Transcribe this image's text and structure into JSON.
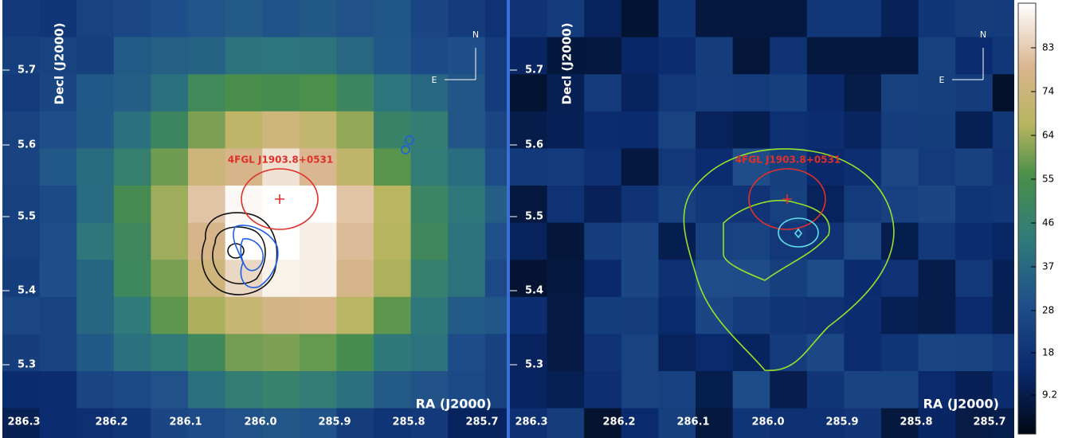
{
  "panels": [
    {
      "dec_label": "Decl (J2000)",
      "ra_label": "RA (J2000)",
      "ra_ticks": [
        "286.3",
        "286.2",
        "286.1",
        "286.0",
        "285.9",
        "285.8",
        "285.7"
      ],
      "dec_ticks": [
        "5.7",
        "5.6",
        "5.5",
        "5.4",
        "5.3"
      ],
      "source": "4FGL J1903.8+0531",
      "north": "N",
      "east": "E"
    },
    {
      "dec_label": "Decl (J2000)",
      "ra_label": "RA (J2000)",
      "ra_ticks": [
        "286.3",
        "286.2",
        "286.1",
        "286.0",
        "285.9",
        "285.8",
        "285.7"
      ],
      "dec_ticks": [
        "5.7",
        "5.6",
        "5.5",
        "5.4",
        "5.3"
      ],
      "source": "4FGL J1903.8+0531",
      "north": "N",
      "east": "E"
    }
  ],
  "colorbar": {
    "ticks": [
      "83",
      "74",
      "64",
      "55",
      "46",
      "37",
      "28",
      "18",
      "9.2"
    ]
  }
}
